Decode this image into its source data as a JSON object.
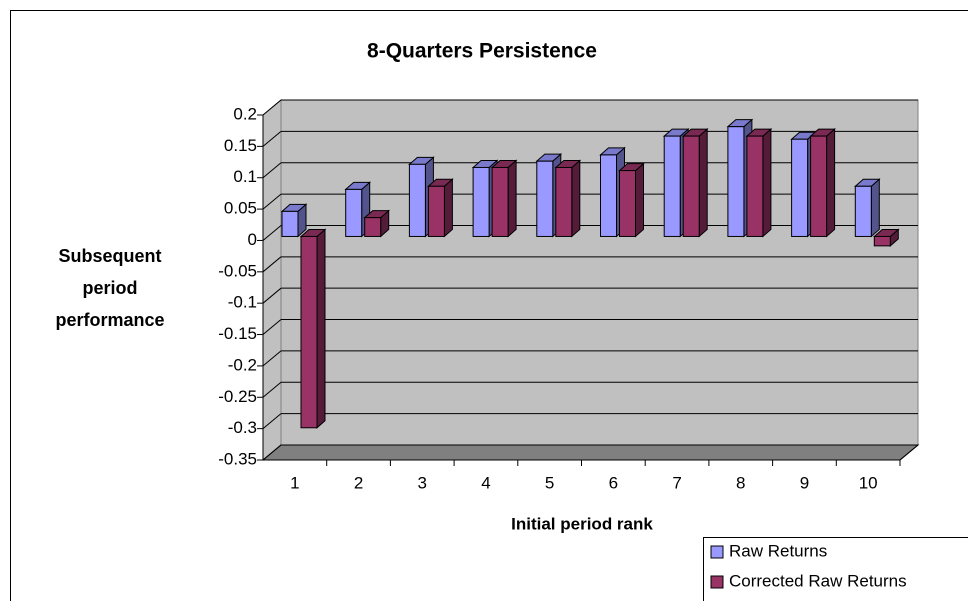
{
  "chart_data": {
    "type": "bar3d",
    "title": "8-Quarters Persistence",
    "y_label": "Subsequent period performance",
    "x_label": "Initial period rank",
    "categories": [
      "1",
      "2",
      "3",
      "4",
      "5",
      "6",
      "7",
      "8",
      "9",
      "10"
    ],
    "series": [
      {
        "name": "Raw Returns",
        "color": "#9999ff",
        "values": [
          0.04,
          0.075,
          0.115,
          0.11,
          0.12,
          0.13,
          0.16,
          0.175,
          0.155,
          0.08
        ]
      },
      {
        "name": "Corrected Raw Returns",
        "color": "#993366",
        "values": [
          -0.305,
          0.03,
          0.08,
          0.11,
          0.11,
          0.105,
          0.16,
          0.16,
          0.16,
          -0.015
        ]
      }
    ],
    "ylim": [
      -0.35,
      0.2
    ],
    "yticks": [
      -0.35,
      -0.3,
      -0.25,
      -0.2,
      -0.15,
      -0.1,
      -0.05,
      0,
      0.05,
      0.1,
      0.15,
      0.2
    ],
    "grid": true,
    "legend": "bottom-right"
  }
}
